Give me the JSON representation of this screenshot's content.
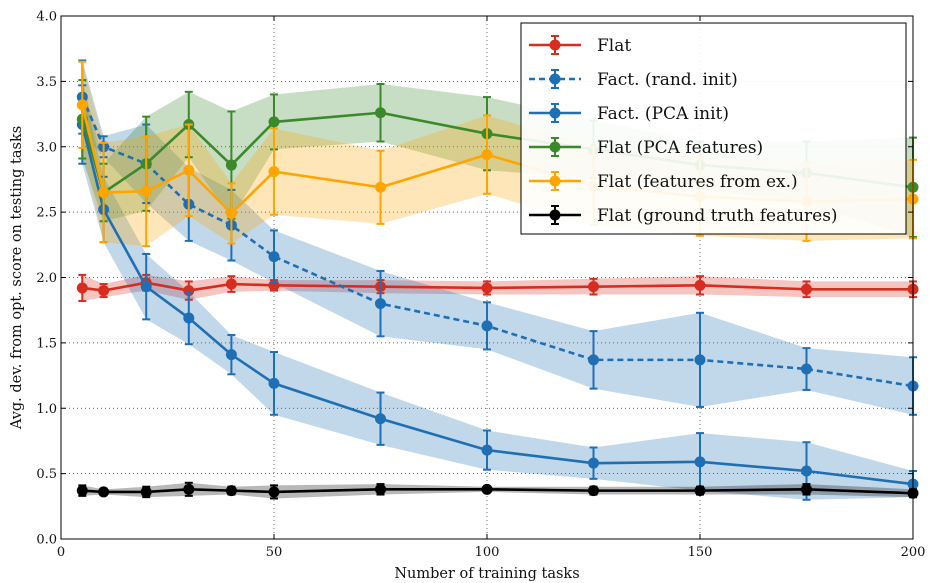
{
  "chart_data": {
    "type": "line",
    "title": "",
    "xlabel": "Number of training tasks",
    "ylabel": "Avg. dev. from opt. score on testing tasks",
    "xlim": [
      0,
      200
    ],
    "ylim": [
      0.0,
      4.0
    ],
    "x_ticks": [
      0,
      50,
      100,
      150,
      200
    ],
    "y_ticks": [
      0.0,
      0.5,
      1.0,
      1.5,
      2.0,
      2.5,
      3.0,
      3.5,
      4.0
    ],
    "x_tick_labels": [
      "0",
      "50",
      "100",
      "150",
      "200"
    ],
    "y_tick_labels": [
      "0.0",
      "0.5",
      "1.0",
      "1.5",
      "2.0",
      "2.5",
      "3.0",
      "3.5",
      "4.0"
    ],
    "grid": true,
    "legend_position": "top-right",
    "series": [
      {
        "name": "Flat",
        "color": "#d62d20",
        "dashed": false,
        "x": [
          5,
          10,
          20,
          30,
          40,
          50,
          75,
          100,
          125,
          150,
          175,
          200
        ],
        "y": [
          1.92,
          1.9,
          1.96,
          1.9,
          1.95,
          1.94,
          1.93,
          1.92,
          1.93,
          1.94,
          1.91,
          1.91
        ],
        "err": [
          0.1,
          0.05,
          0.06,
          0.07,
          0.06,
          0.04,
          0.05,
          0.05,
          0.06,
          0.07,
          0.06,
          0.06
        ]
      },
      {
        "name": "Fact. (rand. init)",
        "color": "#1f6fb4",
        "dashed": true,
        "x": [
          5,
          10,
          20,
          30,
          40,
          50,
          75,
          100,
          125,
          150,
          175,
          200
        ],
        "y": [
          3.38,
          3.0,
          2.87,
          2.56,
          2.4,
          2.16,
          1.8,
          1.63,
          1.37,
          1.37,
          1.3,
          1.17
        ],
        "err": [
          0.28,
          0.08,
          0.3,
          0.28,
          0.27,
          0.2,
          0.25,
          0.18,
          0.22,
          0.36,
          0.16,
          0.22
        ]
      },
      {
        "name": "Fact. (PCA init)",
        "color": "#1f6fb4",
        "dashed": false,
        "x": [
          5,
          10,
          20,
          30,
          40,
          50,
          75,
          100,
          125,
          150,
          175,
          200
        ],
        "y": [
          3.17,
          2.52,
          1.93,
          1.69,
          1.41,
          1.19,
          0.92,
          0.68,
          0.58,
          0.59,
          0.52,
          0.42
        ],
        "err": [
          0.3,
          0.25,
          0.25,
          0.2,
          0.15,
          0.24,
          0.2,
          0.15,
          0.12,
          0.22,
          0.22,
          0.1
        ]
      },
      {
        "name": "Flat (PCA features)",
        "color": "#3a8a2c",
        "dashed": false,
        "x": [
          5,
          10,
          20,
          30,
          40,
          50,
          75,
          100,
          125,
          150,
          175,
          200
        ],
        "y": [
          3.21,
          2.65,
          2.87,
          3.17,
          2.86,
          3.19,
          3.26,
          3.1,
          2.98,
          2.86,
          2.8,
          2.69
        ],
        "err": [
          0.3,
          0.22,
          0.36,
          0.25,
          0.41,
          0.21,
          0.22,
          0.28,
          0.22,
          0.18,
          0.24,
          0.38
        ]
      },
      {
        "name": "Flat (features from ex.)",
        "color": "#ffa500",
        "dashed": false,
        "x": [
          5,
          10,
          20,
          30,
          40,
          50,
          75,
          100,
          125,
          150,
          175,
          200
        ],
        "y": [
          3.32,
          2.65,
          2.66,
          2.82,
          2.49,
          2.81,
          2.69,
          2.94,
          2.7,
          2.62,
          2.58,
          2.6
        ],
        "err": [
          0.33,
          0.38,
          0.42,
          0.35,
          0.23,
          0.33,
          0.28,
          0.3,
          0.3,
          0.3,
          0.3,
          0.3
        ]
      },
      {
        "name": "Flat (ground truth features)",
        "color": "#000000",
        "dashed": false,
        "x": [
          5,
          10,
          20,
          30,
          40,
          50,
          75,
          100,
          125,
          150,
          175,
          200
        ],
        "y": [
          0.37,
          0.36,
          0.36,
          0.38,
          0.37,
          0.36,
          0.38,
          0.38,
          0.37,
          0.37,
          0.38,
          0.35
        ],
        "err": [
          0.04,
          0.02,
          0.04,
          0.05,
          0.03,
          0.05,
          0.04,
          0.02,
          0.03,
          0.03,
          0.04,
          0.03
        ]
      }
    ]
  }
}
